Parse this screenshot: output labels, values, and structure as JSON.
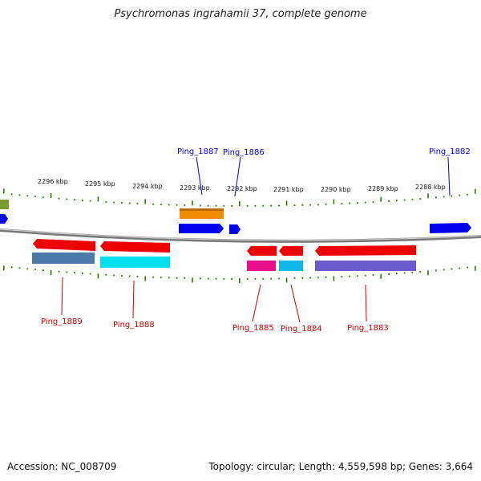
{
  "title": "Psychromonas ingrahamii 37, complete genome",
  "accession": "Accession: NC_008709",
  "summary": "Topology: circular; Length: 4,559,598 bp; Genes: 3,664",
  "colors": {
    "forward_label": "#0000cc",
    "reverse_label": "#cc0000",
    "backbone": "#888888",
    "ticks": "#2a7a00"
  },
  "ruler": {
    "unit": "kbp",
    "ticks": [
      {
        "kbp": 2296,
        "label": "2296 kbp"
      },
      {
        "kbp": 2295,
        "label": "2295 kbp"
      },
      {
        "kbp": 2294,
        "label": "2294 kbp"
      },
      {
        "kbp": 2293,
        "label": "2293 kbp"
      },
      {
        "kbp": 2292,
        "label": "2292 kbp"
      },
      {
        "kbp": 2291,
        "label": "2291 kbp"
      },
      {
        "kbp": 2290,
        "label": "2290 kbp"
      },
      {
        "kbp": 2289,
        "label": "2289 kbp"
      },
      {
        "kbp": 2288,
        "label": "2288 kbp"
      }
    ]
  },
  "gene_labels": [
    {
      "text": "Ping_1887",
      "strand": "forward"
    },
    {
      "text": "Ping_1886",
      "strand": "forward"
    },
    {
      "text": "Ping_1882",
      "strand": "forward"
    },
    {
      "text": "Ping_1889",
      "strand": "reverse"
    },
    {
      "text": "Ping_1888",
      "strand": "reverse"
    },
    {
      "text": "Ping_1885",
      "strand": "reverse"
    },
    {
      "text": "Ping_1884",
      "strand": "reverse"
    },
    {
      "text": "Ping_1883",
      "strand": "reverse"
    }
  ],
  "features": [
    {
      "name": "feature-olive",
      "color": "#7a9a30"
    },
    {
      "name": "feature-blue-left",
      "color": "#0000ee"
    },
    {
      "name": "feature-orange",
      "color": "#f08c00"
    },
    {
      "name": "feature-blue-1887",
      "color": "#0000ee"
    },
    {
      "name": "feature-blue-1886",
      "color": "#0000ee"
    },
    {
      "name": "feature-blue-1882",
      "color": "#0000ee"
    },
    {
      "name": "feature-red-1889",
      "color": "#ee0000"
    },
    {
      "name": "feature-steel-1889",
      "color": "#4a7aa8"
    },
    {
      "name": "feature-red-1888",
      "color": "#ee0000"
    },
    {
      "name": "feature-cyan-1888",
      "color": "#00e0f0"
    },
    {
      "name": "feature-red-1885",
      "color": "#ee0000"
    },
    {
      "name": "feature-pink-1885",
      "color": "#e8108a"
    },
    {
      "name": "feature-red-1884",
      "color": "#ee0000"
    },
    {
      "name": "feature-cyan-1884",
      "color": "#10b8e8"
    },
    {
      "name": "feature-red-1883",
      "color": "#ee0000"
    },
    {
      "name": "feature-purple-1883",
      "color": "#6a5acd"
    }
  ]
}
